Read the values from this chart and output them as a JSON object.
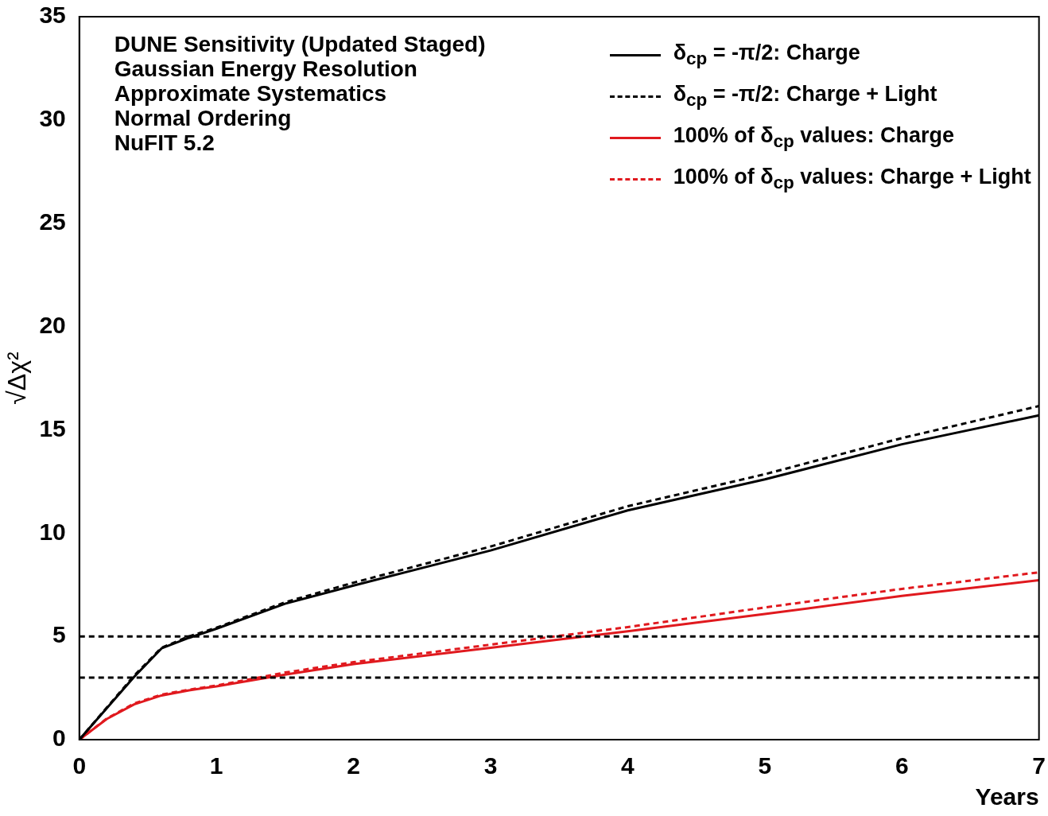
{
  "chart_data": {
    "type": "line",
    "xlabel": "Years",
    "ylabel": "√Δχ²",
    "annotations": [
      "DUNE Sensitivity (Updated Staged)",
      "Gaussian Energy Resolution",
      "Approximate Systematics",
      "Normal Ordering",
      "NuFIT 5.2"
    ],
    "x": [
      0,
      0.2,
      0.4,
      0.6,
      0.8,
      1,
      1.5,
      2,
      3,
      4,
      5,
      6,
      7
    ],
    "series": [
      {
        "name": "δ$_{cp}$ = -π/2: Charge",
        "color": "#000000",
        "line_style": "solid",
        "values": [
          0,
          1.52,
          3.04,
          4.42,
          4.93,
          5.37,
          6.58,
          7.46,
          9.16,
          11.1,
          12.6,
          14.3,
          15.7
        ]
      },
      {
        "name": "δ$_{cp}$ = -π/2: Charge + Light",
        "color": "#000000",
        "line_style": "dashed",
        "values": [
          0,
          1.55,
          3.1,
          4.45,
          5.0,
          5.42,
          6.65,
          7.6,
          9.35,
          11.3,
          12.85,
          14.6,
          16.15
        ]
      },
      {
        "name": "100% of  δ$_{cp}$ values: Charge",
        "color": "#e0191e",
        "line_style": "solid",
        "values": [
          0,
          1.0,
          1.71,
          2.14,
          2.39,
          2.58,
          3.15,
          3.66,
          4.45,
          5.25,
          6.08,
          6.96,
          7.72
        ]
      },
      {
        "name": "100% of  δ$_{cp}$ values: Charge + Light",
        "color": "#e0191e",
        "line_style": "dashed",
        "values": [
          0,
          1.02,
          1.75,
          2.18,
          2.42,
          2.62,
          3.25,
          3.75,
          4.6,
          5.45,
          6.4,
          7.3,
          8.1
        ]
      }
    ],
    "xlim": [
      0,
      7
    ],
    "xticks": [
      0,
      1,
      2,
      3,
      4,
      5,
      6,
      7
    ],
    "ylim": [
      0,
      35
    ],
    "yticks": [
      0,
      5,
      10,
      15,
      20,
      25,
      30,
      35
    ],
    "ref_lines": [
      {
        "axis": "y",
        "value": 5,
        "color": "#000000",
        "line_style": "dashed"
      },
      {
        "axis": "y",
        "value": 3,
        "color": "#000000",
        "line_style": "dashed"
      }
    ],
    "grid": false,
    "legend": "top right",
    "marker": "none"
  }
}
